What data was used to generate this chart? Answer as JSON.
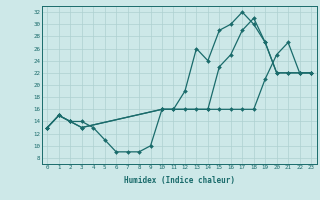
{
  "xlabel": "Humidex (Indice chaleur)",
  "bg_color": "#cde8e8",
  "line_color": "#1a6b6b",
  "grid_color": "#aed0d0",
  "xlim": [
    -0.5,
    23.5
  ],
  "ylim": [
    7,
    33
  ],
  "xticks": [
    0,
    1,
    2,
    3,
    4,
    5,
    6,
    7,
    8,
    9,
    10,
    11,
    12,
    13,
    14,
    15,
    16,
    17,
    18,
    19,
    20,
    21,
    22,
    23
  ],
  "yticks": [
    8,
    10,
    12,
    14,
    16,
    18,
    20,
    22,
    24,
    26,
    28,
    30,
    32
  ],
  "line1_x": [
    0,
    1,
    2,
    3,
    4,
    5,
    6,
    7,
    8,
    9,
    10,
    11,
    12,
    13,
    14,
    15,
    16,
    17,
    18,
    19,
    20,
    21,
    22,
    23
  ],
  "line1_y": [
    13,
    15,
    14,
    14,
    13,
    11,
    9,
    9,
    9,
    10,
    16,
    16,
    19,
    26,
    24,
    29,
    30,
    32,
    30,
    27,
    22,
    22,
    22,
    22
  ],
  "line2_x": [
    0,
    1,
    2,
    3,
    10,
    11,
    12,
    13,
    14,
    15,
    16,
    17,
    18,
    19,
    20,
    21,
    22,
    23
  ],
  "line2_y": [
    13,
    15,
    14,
    13,
    16,
    16,
    16,
    16,
    16,
    16,
    16,
    16,
    16,
    21,
    25,
    27,
    22,
    22
  ],
  "line3_x": [
    0,
    1,
    2,
    3,
    10,
    14,
    15,
    16,
    17,
    18,
    19,
    20,
    21,
    22,
    23
  ],
  "line3_y": [
    13,
    15,
    14,
    13,
    16,
    16,
    23,
    25,
    29,
    31,
    27,
    22,
    22,
    22,
    22
  ]
}
